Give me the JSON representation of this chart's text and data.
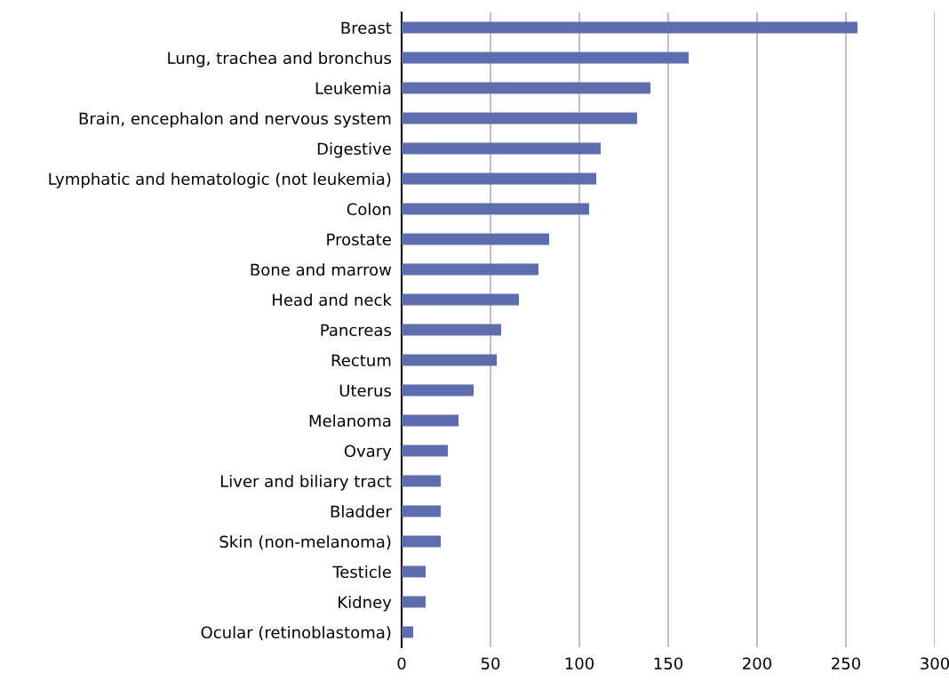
{
  "chart_data": {
    "type": "bar",
    "orientation": "horizontal",
    "categories": [
      "Breast",
      "Lung, trachea and bronchus",
      "Leukemia",
      "Brain, encephalon and nervous system",
      "Digestive",
      "Lymphatic and hematologic (not leukemia)",
      "Colon",
      "Prostate",
      "Bone and marrow",
      "Head and neck",
      "Pancreas",
      "Rectum",
      "Uterus",
      "Melanoma",
      "Ovary",
      "Liver and biliary tract",
      "Bladder",
      "Skin (non-melanoma)",
      "Testicle",
      "Kidney",
      "Ocular (retinoblastoma)"
    ],
    "values": [
      256.5,
      161.5,
      140,
      132.5,
      112,
      109.5,
      105.5,
      83,
      77,
      66,
      56,
      53.5,
      40.5,
      32,
      26,
      22,
      22,
      22,
      13.5,
      13.5,
      6.5
    ],
    "color": "#5f6dae",
    "xlim": [
      0,
      300
    ],
    "xticks": [
      0,
      50,
      100,
      150,
      200,
      250,
      300
    ],
    "grid": "x"
  }
}
